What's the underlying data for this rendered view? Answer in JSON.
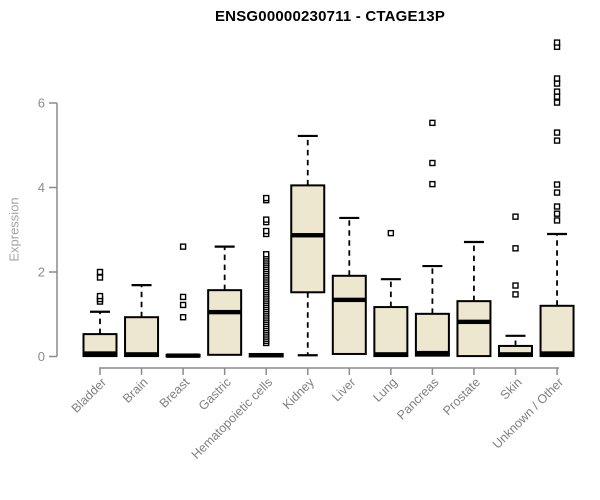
{
  "chart_data": {
    "type": "boxplot",
    "title": "ENSG00000230711 - CTAGE13P",
    "ylabel": "Expression",
    "xlabel": "",
    "ylim": [
      0,
      6
    ],
    "yticks": [
      0,
      2,
      4,
      6
    ],
    "grid": false,
    "legend": "none",
    "categories": [
      "Bladder",
      "Brain",
      "Breast",
      "Gastric",
      "Hematopoietic cells",
      "Kidney",
      "Liver",
      "Lung",
      "Pancreas",
      "Prostate",
      "Skin",
      "Unknown / Other"
    ],
    "series": [
      {
        "category": "Bladder",
        "low": 0.01,
        "q1": 0.01,
        "median": 0.07,
        "q3": 0.53,
        "high": 1.06,
        "outliers": [
          1.3,
          1.36,
          1.43,
          1.87,
          2.0
        ]
      },
      {
        "category": "Brain",
        "low": 0.01,
        "q1": 0.01,
        "median": 0.05,
        "q3": 0.93,
        "high": 1.69,
        "outliers": []
      },
      {
        "category": "Breast",
        "low": 0.0,
        "q1": 0.0,
        "median": 0.02,
        "q3": 0.04,
        "high": 0.04,
        "outliers": [
          0.93,
          1.22,
          1.41,
          2.6
        ]
      },
      {
        "category": "Gastric",
        "low": 0.04,
        "q1": 0.04,
        "median": 1.05,
        "q3": 1.57,
        "high": 2.6,
        "outliers": []
      },
      {
        "category": "Hematopoietic cells",
        "low": 0.0,
        "q1": 0.0,
        "median": 0.03,
        "q3": 0.06,
        "high": 0.06,
        "outliers": [
          0.32,
          0.37,
          0.42,
          0.47,
          0.52,
          0.57,
          0.62,
          0.67,
          0.72,
          0.77,
          0.82,
          0.87,
          0.92,
          0.97,
          1.02,
          1.07,
          1.12,
          1.17,
          1.22,
          1.27,
          1.32,
          1.37,
          1.42,
          1.47,
          1.52,
          1.57,
          1.62,
          1.67,
          1.72,
          1.77,
          1.82,
          1.87,
          1.92,
          1.97,
          2.02,
          2.07,
          2.12,
          2.17,
          2.22,
          2.27,
          2.32,
          2.37,
          2.42,
          2.9,
          2.97,
          3.18,
          3.24,
          3.7,
          3.75
        ]
      },
      {
        "category": "Kidney",
        "low": 0.03,
        "q1": 1.52,
        "median": 2.87,
        "q3": 4.05,
        "high": 5.22,
        "outliers": []
      },
      {
        "category": "Liver",
        "low": 0.06,
        "q1": 0.06,
        "median": 1.34,
        "q3": 1.91,
        "high": 3.28,
        "outliers": []
      },
      {
        "category": "Lung",
        "low": 0.01,
        "q1": 0.01,
        "median": 0.05,
        "q3": 1.17,
        "high": 1.83,
        "outliers": [
          2.92
        ]
      },
      {
        "category": "Pancreas",
        "low": 0.02,
        "q1": 0.02,
        "median": 0.08,
        "q3": 1.01,
        "high": 2.14,
        "outliers": [
          4.08,
          4.58,
          5.53
        ]
      },
      {
        "category": "Prostate",
        "low": 0.01,
        "q1": 0.01,
        "median": 0.82,
        "q3": 1.31,
        "high": 2.71,
        "outliers": []
      },
      {
        "category": "Skin",
        "low": 0.01,
        "q1": 0.01,
        "median": 0.05,
        "q3": 0.25,
        "high": 0.49,
        "outliers": [
          1.47,
          1.68,
          2.56,
          3.31
        ]
      },
      {
        "category": "Unknown / Other",
        "low": 0.01,
        "q1": 0.01,
        "median": 0.07,
        "q3": 1.2,
        "high": 2.9,
        "outliers": [
          3.22,
          3.38,
          3.55,
          3.88,
          4.07,
          5.11,
          5.3,
          6.01,
          6.15,
          6.27,
          6.46,
          6.58,
          7.33,
          7.43
        ]
      }
    ],
    "colors": {
      "box_fill": "#ece7ce",
      "box_stroke": "#000000",
      "median": "#000000",
      "outlier_stroke": "#000000",
      "outlier_fill": "#ffffff",
      "axis_line": "#8c8c8c",
      "tick_label": "#8c8c8c",
      "category_label": "#808080",
      "title": "#000000",
      "ylabel": "#a3a3a3",
      "background": "#ffffff"
    }
  }
}
